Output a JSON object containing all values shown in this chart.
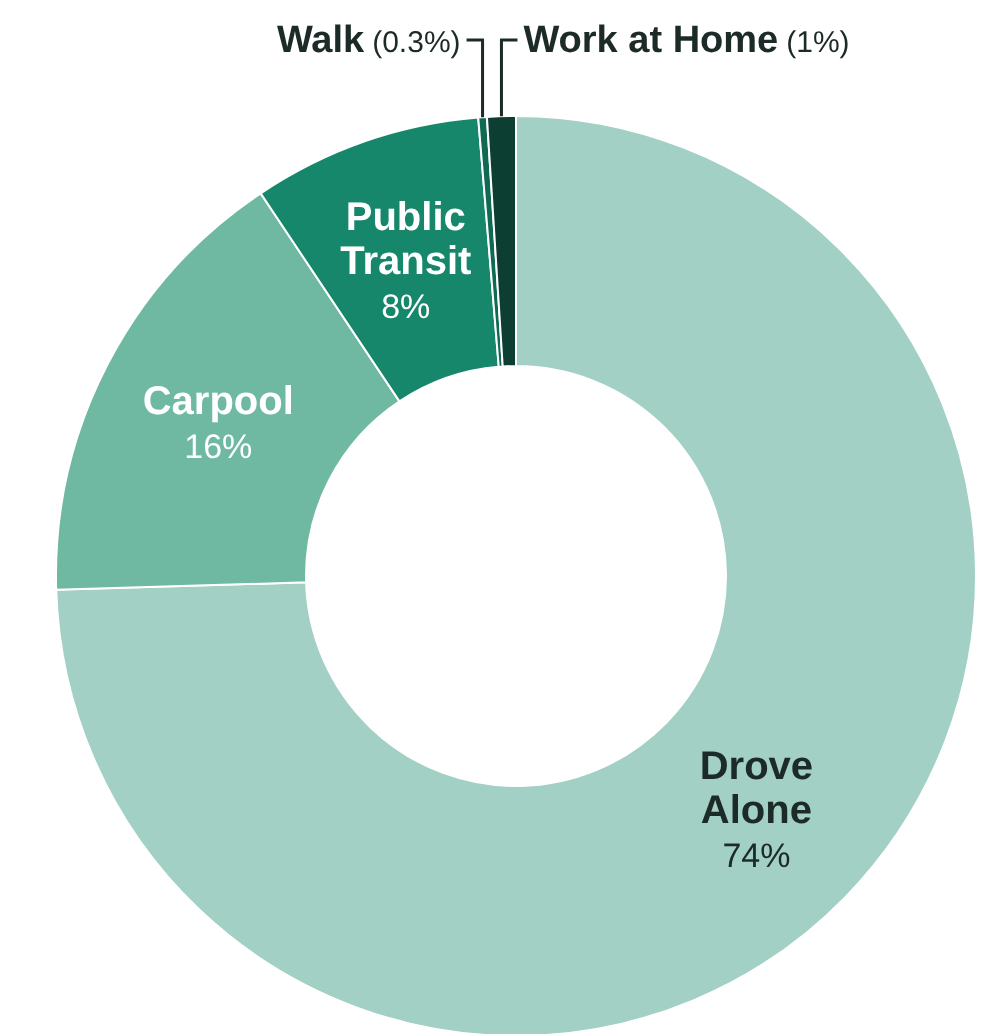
{
  "chart_data": {
    "type": "donut",
    "categories": [
      "Drove Alone",
      "Carpool",
      "Public Transit",
      "Walk",
      "Work at Home"
    ],
    "values": [
      74,
      16,
      8,
      0.3,
      1
    ],
    "colors": [
      "#a2d0c5",
      "#6fb8a2",
      "#16876b",
      "#0f6a53",
      "#0c3f32"
    ],
    "value_labels": [
      "74%",
      "16%",
      "8%",
      "(0.3%)",
      "(1%)"
    ]
  }
}
